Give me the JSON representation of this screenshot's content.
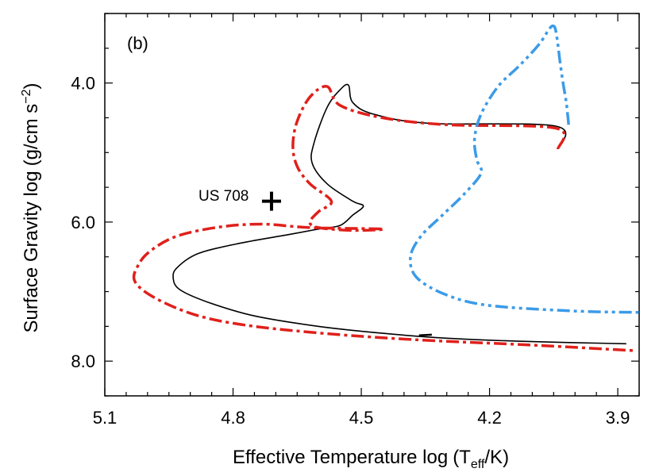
{
  "chart_data": {
    "type": "line",
    "panel_label": "(b)",
    "xlabel_main": "Effective Temperature  log",
    "xlabel_var": "T",
    "xlabel_sub": "eff",
    "xlabel_unit": "/K",
    "ylabel_main": "Surface Gravity  log",
    "ylabel_unit": "g/cm s",
    "ylabel_exp": "−2",
    "xlim": [
      5.1,
      3.85
    ],
    "ylim": [
      8.5,
      3.0
    ],
    "x_ticks": [
      5.1,
      4.8,
      4.5,
      4.2,
      3.9
    ],
    "x_tick_labels": [
      "5.1",
      "4.8",
      "4.5",
      "4.2",
      "3.9"
    ],
    "y_ticks": [
      4.0,
      6.0,
      8.0
    ],
    "y_tick_labels": [
      "4.0",
      "6.0",
      "8.0"
    ],
    "annotation": {
      "label": "US 708",
      "x": 4.71,
      "y": 5.7,
      "marker": "+"
    },
    "series": [
      {
        "name": "black track",
        "color": "#000000",
        "style": "solid",
        "points": [
          [
            4.04,
            4.95
          ],
          [
            4.045,
            4.62
          ],
          [
            4.34,
            4.58
          ],
          [
            4.47,
            4.45
          ],
          [
            4.52,
            4.28
          ],
          [
            4.53,
            4.03
          ],
          [
            4.55,
            4.1
          ],
          [
            4.58,
            4.35
          ],
          [
            4.61,
            4.85
          ],
          [
            4.615,
            5.15
          ],
          [
            4.58,
            5.45
          ],
          [
            4.52,
            5.7
          ],
          [
            4.495,
            5.77
          ],
          [
            4.52,
            5.9
          ],
          [
            4.55,
            6.05
          ],
          [
            4.6,
            6.1
          ],
          [
            4.67,
            6.18
          ],
          [
            4.78,
            6.3
          ],
          [
            4.88,
            6.45
          ],
          [
            4.93,
            6.65
          ],
          [
            4.94,
            6.8
          ],
          [
            4.925,
            6.97
          ],
          [
            4.86,
            7.15
          ],
          [
            4.75,
            7.35
          ],
          [
            4.6,
            7.5
          ],
          [
            4.45,
            7.6
          ],
          [
            4.3,
            7.67
          ],
          [
            4.1,
            7.72
          ],
          [
            3.88,
            7.75
          ]
        ]
      },
      {
        "name": "red track",
        "color": "#e0201b",
        "style": "dashdot",
        "points": [
          [
            4.04,
            4.95
          ],
          [
            4.045,
            4.65
          ],
          [
            4.3,
            4.6
          ],
          [
            4.45,
            4.5
          ],
          [
            4.55,
            4.32
          ],
          [
            4.58,
            4.05
          ],
          [
            4.62,
            4.2
          ],
          [
            4.65,
            4.55
          ],
          [
            4.66,
            4.9
          ],
          [
            4.65,
            5.2
          ],
          [
            4.62,
            5.45
          ],
          [
            4.57,
            5.7
          ],
          [
            4.6,
            5.85
          ],
          [
            4.62,
            6.0
          ],
          [
            4.6,
            6.08
          ],
          [
            4.52,
            6.12
          ],
          [
            4.45,
            6.1
          ],
          [
            4.62,
            6.08
          ],
          [
            4.73,
            6.03
          ],
          [
            4.83,
            6.07
          ],
          [
            4.93,
            6.2
          ],
          [
            4.99,
            6.4
          ],
          [
            5.02,
            6.6
          ],
          [
            5.03,
            6.85
          ],
          [
            4.98,
            7.1
          ],
          [
            4.88,
            7.35
          ],
          [
            4.75,
            7.5
          ],
          [
            4.55,
            7.62
          ],
          [
            4.35,
            7.7
          ],
          [
            4.1,
            7.77
          ],
          [
            3.86,
            7.85
          ]
        ]
      },
      {
        "name": "blue track",
        "color": "#3b9be8",
        "style": "dashdotdot",
        "points": [
          [
            4.015,
            4.6
          ],
          [
            4.02,
            4.3
          ],
          [
            4.028,
            4.0
          ],
          [
            4.035,
            3.7
          ],
          [
            4.04,
            3.45
          ],
          [
            4.045,
            3.25
          ],
          [
            4.05,
            3.18
          ],
          [
            4.06,
            3.22
          ],
          [
            4.085,
            3.45
          ],
          [
            4.13,
            3.75
          ],
          [
            4.18,
            4.05
          ],
          [
            4.22,
            4.45
          ],
          [
            4.235,
            4.8
          ],
          [
            4.23,
            5.1
          ],
          [
            4.22,
            5.3
          ],
          [
            4.26,
            5.6
          ],
          [
            4.31,
            5.9
          ],
          [
            4.36,
            6.2
          ],
          [
            4.385,
            6.5
          ],
          [
            4.37,
            6.8
          ],
          [
            4.3,
            7.05
          ],
          [
            4.2,
            7.2
          ],
          [
            4.0,
            7.28
          ],
          [
            3.85,
            7.3
          ]
        ]
      }
    ],
    "tiny_black_segment": [
      [
        4.365,
        7.63
      ],
      [
        4.335,
        7.62
      ]
    ]
  }
}
